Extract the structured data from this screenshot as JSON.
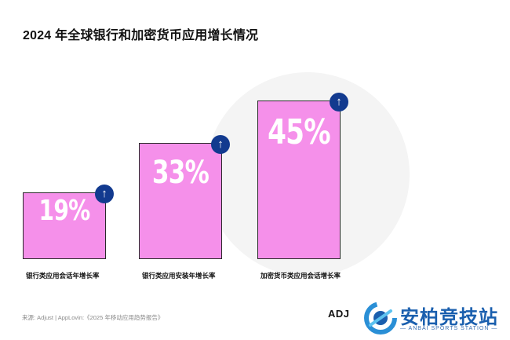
{
  "chart_data": {
    "type": "bar",
    "title": "2024 年全球银行和加密货币应用增长情况",
    "categories": [
      "银行类应用会话年增长率",
      "银行类应用安装年增长率",
      "加密货币类应用会话增长率"
    ],
    "values": [
      19,
      33,
      45
    ],
    "value_labels": [
      "19%",
      "33%",
      "45%"
    ],
    "ylim": [
      0,
      50
    ],
    "grid": false,
    "legend": "none",
    "colors": {
      "bar": "#f590ea",
      "arrow": "#123a8f"
    }
  },
  "footer": {
    "source": "来源: Adjust | AppLovin:《2025 年移动应用趋势报告》",
    "adj_logo": "ADJ"
  },
  "brand": {
    "name_cn": "安柏竞技站",
    "name_en": "— ANBAI SPORTS STATION —"
  },
  "icons": {
    "arrow": "arrow-up-icon",
    "brand": "brand-logo-icon"
  }
}
